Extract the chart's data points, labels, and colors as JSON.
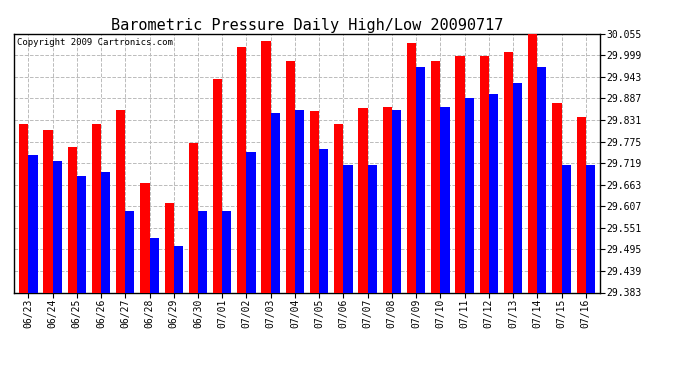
{
  "title": "Barometric Pressure Daily High/Low 20090717",
  "copyright": "Copyright 2009 Cartronics.com",
  "dates": [
    "06/23",
    "06/24",
    "06/25",
    "06/26",
    "06/27",
    "06/28",
    "06/29",
    "06/30",
    "07/01",
    "07/02",
    "07/03",
    "07/04",
    "07/05",
    "07/06",
    "07/07",
    "07/08",
    "07/09",
    "07/10",
    "07/11",
    "07/12",
    "07/13",
    "07/14",
    "07/15",
    "07/16"
  ],
  "highs": [
    29.82,
    29.805,
    29.76,
    29.82,
    29.858,
    29.668,
    29.615,
    29.77,
    29.938,
    30.02,
    30.035,
    29.985,
    29.855,
    29.82,
    29.863,
    29.865,
    30.03,
    29.985,
    29.998,
    29.998,
    30.008,
    30.055,
    29.875,
    29.838
  ],
  "lows": [
    29.74,
    29.725,
    29.685,
    29.695,
    29.595,
    29.525,
    29.505,
    29.595,
    29.595,
    29.748,
    29.848,
    29.858,
    29.755,
    29.715,
    29.715,
    29.858,
    29.968,
    29.865,
    29.888,
    29.898,
    29.928,
    29.968,
    29.715,
    29.715
  ],
  "ymin": 29.383,
  "ymax": 30.055,
  "yticks": [
    29.383,
    29.439,
    29.495,
    29.551,
    29.607,
    29.663,
    29.719,
    29.775,
    29.831,
    29.887,
    29.943,
    29.999,
    30.055
  ],
  "high_color": "#ff0000",
  "low_color": "#0000ff",
  "bg_color": "#ffffff",
  "grid_color": "#bbbbbb",
  "title_fontsize": 11,
  "bar_width": 0.38,
  "fig_width": 6.9,
  "fig_height": 3.75,
  "dpi": 100
}
